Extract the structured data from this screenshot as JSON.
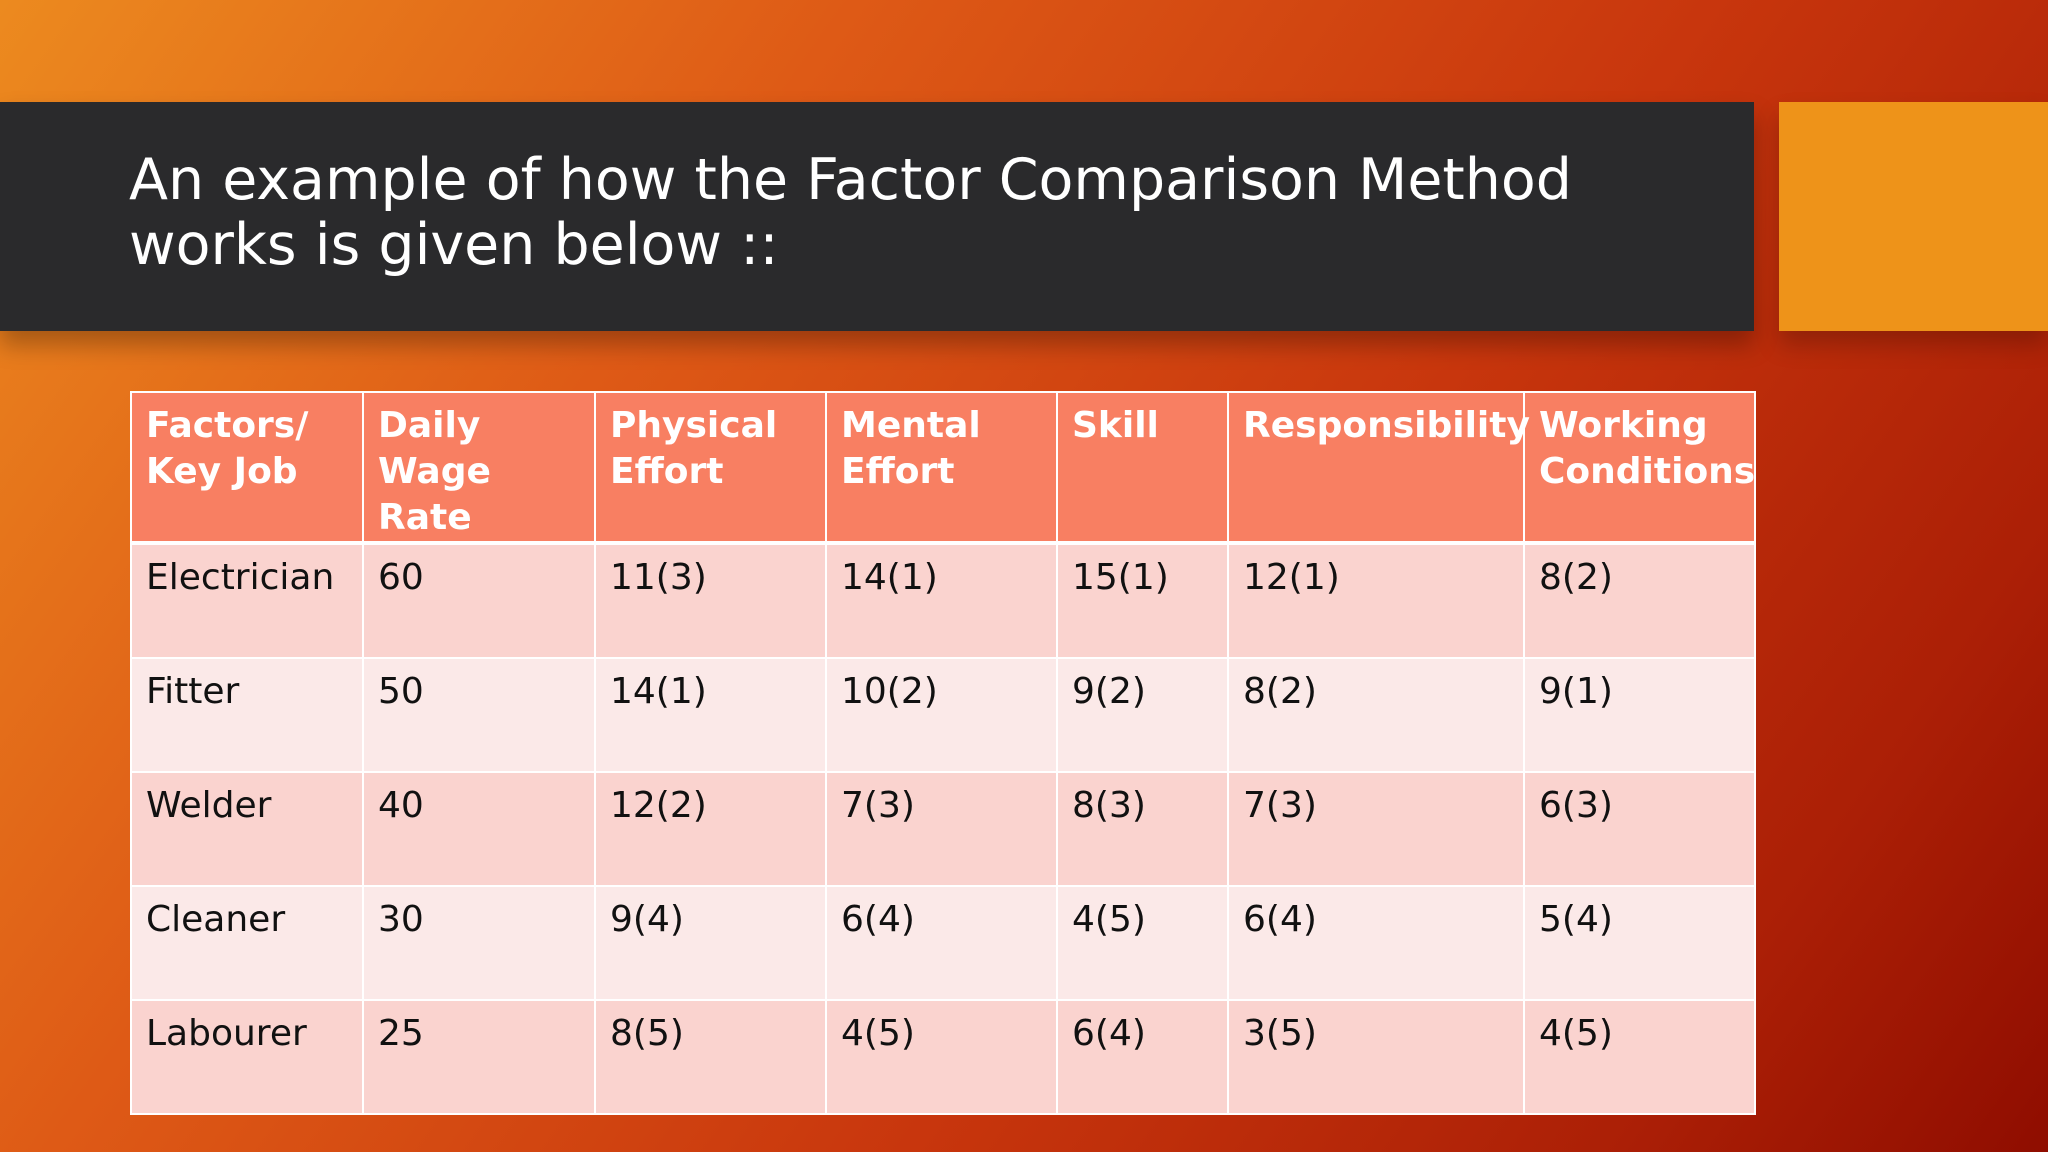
{
  "slide": {
    "title": "An example of how the Factor Comparison Method works is given below ::"
  },
  "table": {
    "headers": [
      "Factors/ Key Job",
      "Daily Wage Rate",
      "Physical Effort",
      "Mental Effort",
      "Skill",
      "Responsibility",
      "Working Conditions"
    ],
    "rows": [
      [
        "Electrician",
        "60",
        "11(3)",
        "14(1)",
        "15(1)",
        "12(1)",
        "8(2)"
      ],
      [
        "Fitter",
        "50",
        "14(1)",
        "10(2)",
        "9(2)",
        "8(2)",
        "9(1)"
      ],
      [
        "Welder",
        "40",
        "12(2)",
        "7(3)",
        "8(3)",
        "7(3)",
        "6(3)"
      ],
      [
        "Cleaner",
        "30",
        "9(4)",
        "6(4)",
        "4(5)",
        "6(4)",
        "5(4)"
      ],
      [
        "Labourer",
        "25",
        "8(5)",
        "4(5)",
        "6(4)",
        "3(5)",
        "4(5)"
      ]
    ]
  },
  "colors": {
    "title_band": "#2a2a2c",
    "accent_block": "#ee9319",
    "header_fill": "#f87f62",
    "row_band_dark": "#fad3cf",
    "row_band_light": "#fbe9e8"
  }
}
